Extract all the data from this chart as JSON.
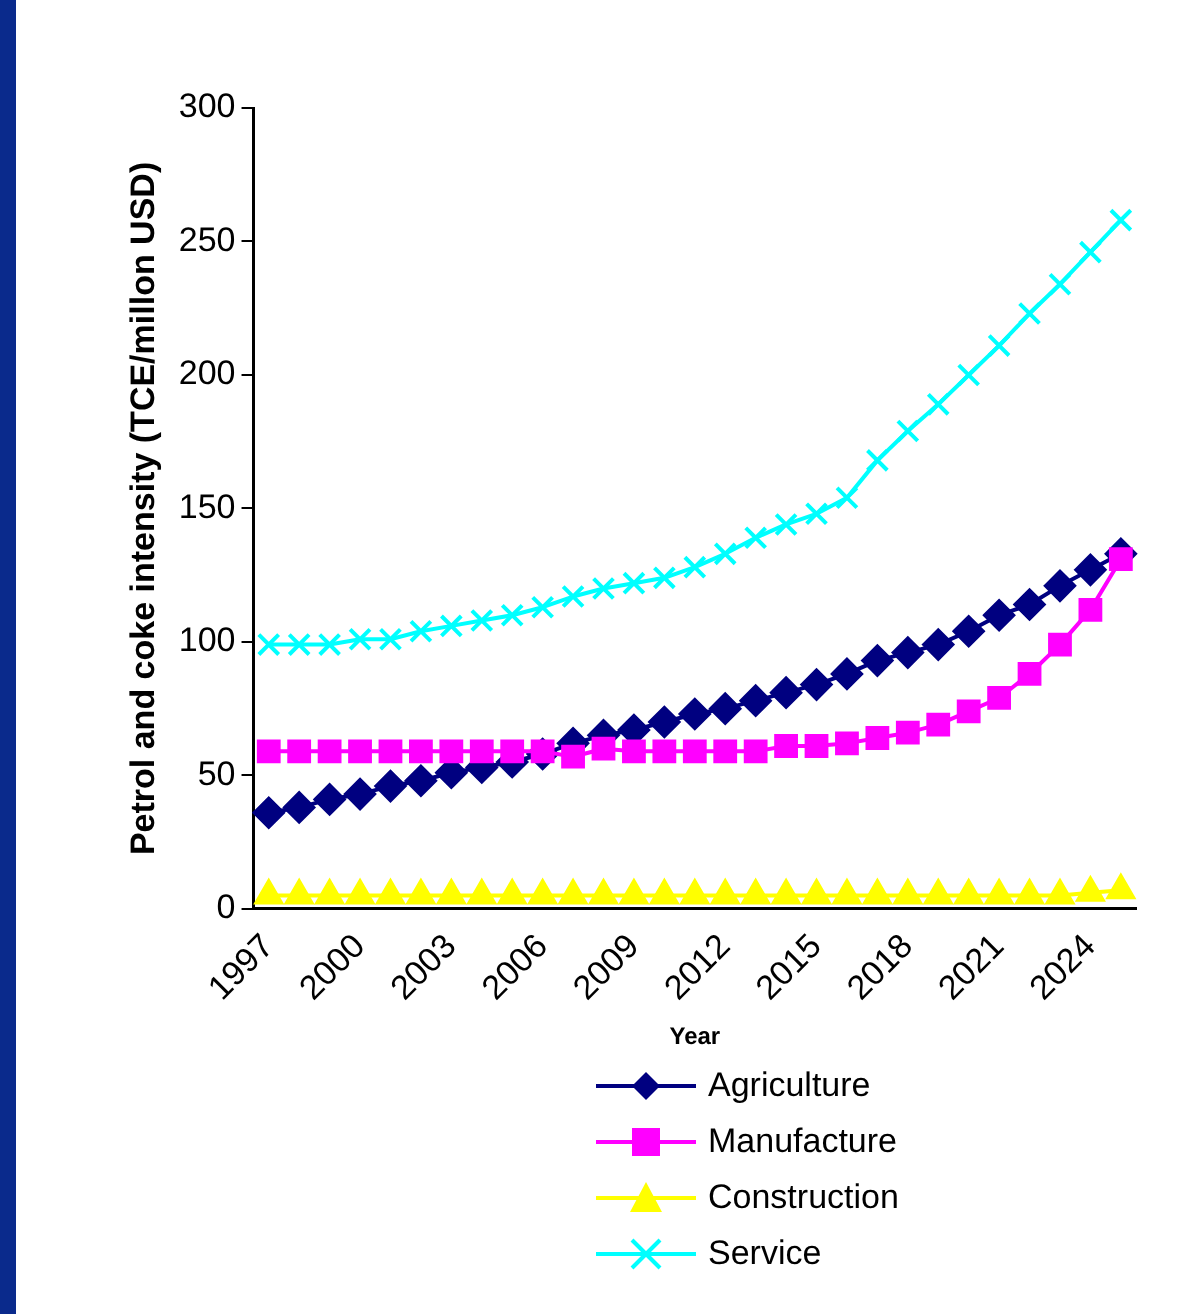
{
  "chart_data": {
    "type": "line",
    "xlabel": "Year",
    "ylabel": "Petrol and coke intensity (TCE/millon USD)",
    "categories": [
      "1997",
      null,
      null,
      "2000",
      null,
      null,
      "2003",
      null,
      null,
      "2006",
      null,
      null,
      "2009",
      null,
      null,
      "2012",
      null,
      null,
      "2015",
      null,
      null,
      "2018",
      null,
      null,
      "2021",
      null,
      null,
      "2024",
      null
    ],
    "series": [
      {
        "name": "Agriculture",
        "color": "#000080",
        "marker": "diamond",
        "values": [
          36,
          38,
          41,
          43,
          46,
          48,
          51,
          53,
          55,
          58,
          62,
          65,
          67,
          70,
          73,
          75,
          78,
          81,
          84,
          88,
          93,
          96,
          99,
          104,
          110,
          114,
          121,
          127,
          133
        ]
      },
      {
        "name": "Manufacture",
        "color": "#ff00ff",
        "marker": "square",
        "values": [
          59,
          59,
          59,
          59,
          59,
          59,
          59,
          59,
          59,
          59,
          57,
          60,
          59,
          59,
          59,
          59,
          59,
          61,
          61,
          62,
          64,
          66,
          69,
          74,
          79,
          88,
          99,
          112,
          131
        ]
      },
      {
        "name": "Construction",
        "color": "#ffff00",
        "marker": "triangle",
        "values": [
          5,
          5,
          5,
          5,
          5,
          5,
          5,
          5,
          5,
          5,
          5,
          5,
          5,
          5,
          5,
          5,
          5,
          5,
          5,
          5,
          5,
          5,
          5,
          5,
          5,
          5,
          5,
          6,
          7
        ]
      },
      {
        "name": "Service",
        "color": "#00ffff",
        "marker": "cross",
        "values": [
          99,
          99,
          99,
          101,
          101,
          104,
          106,
          108,
          110,
          113,
          117,
          120,
          122,
          124,
          128,
          133,
          139,
          144,
          148,
          154,
          168,
          179,
          189,
          200,
          211,
          223,
          234,
          246,
          258
        ]
      }
    ],
    "ylim": [
      0,
      300
    ],
    "yticks": [
      0,
      50,
      100,
      150,
      200,
      250,
      300
    ],
    "grid": false,
    "legend": "bottom",
    "line_style": "solid"
  }
}
